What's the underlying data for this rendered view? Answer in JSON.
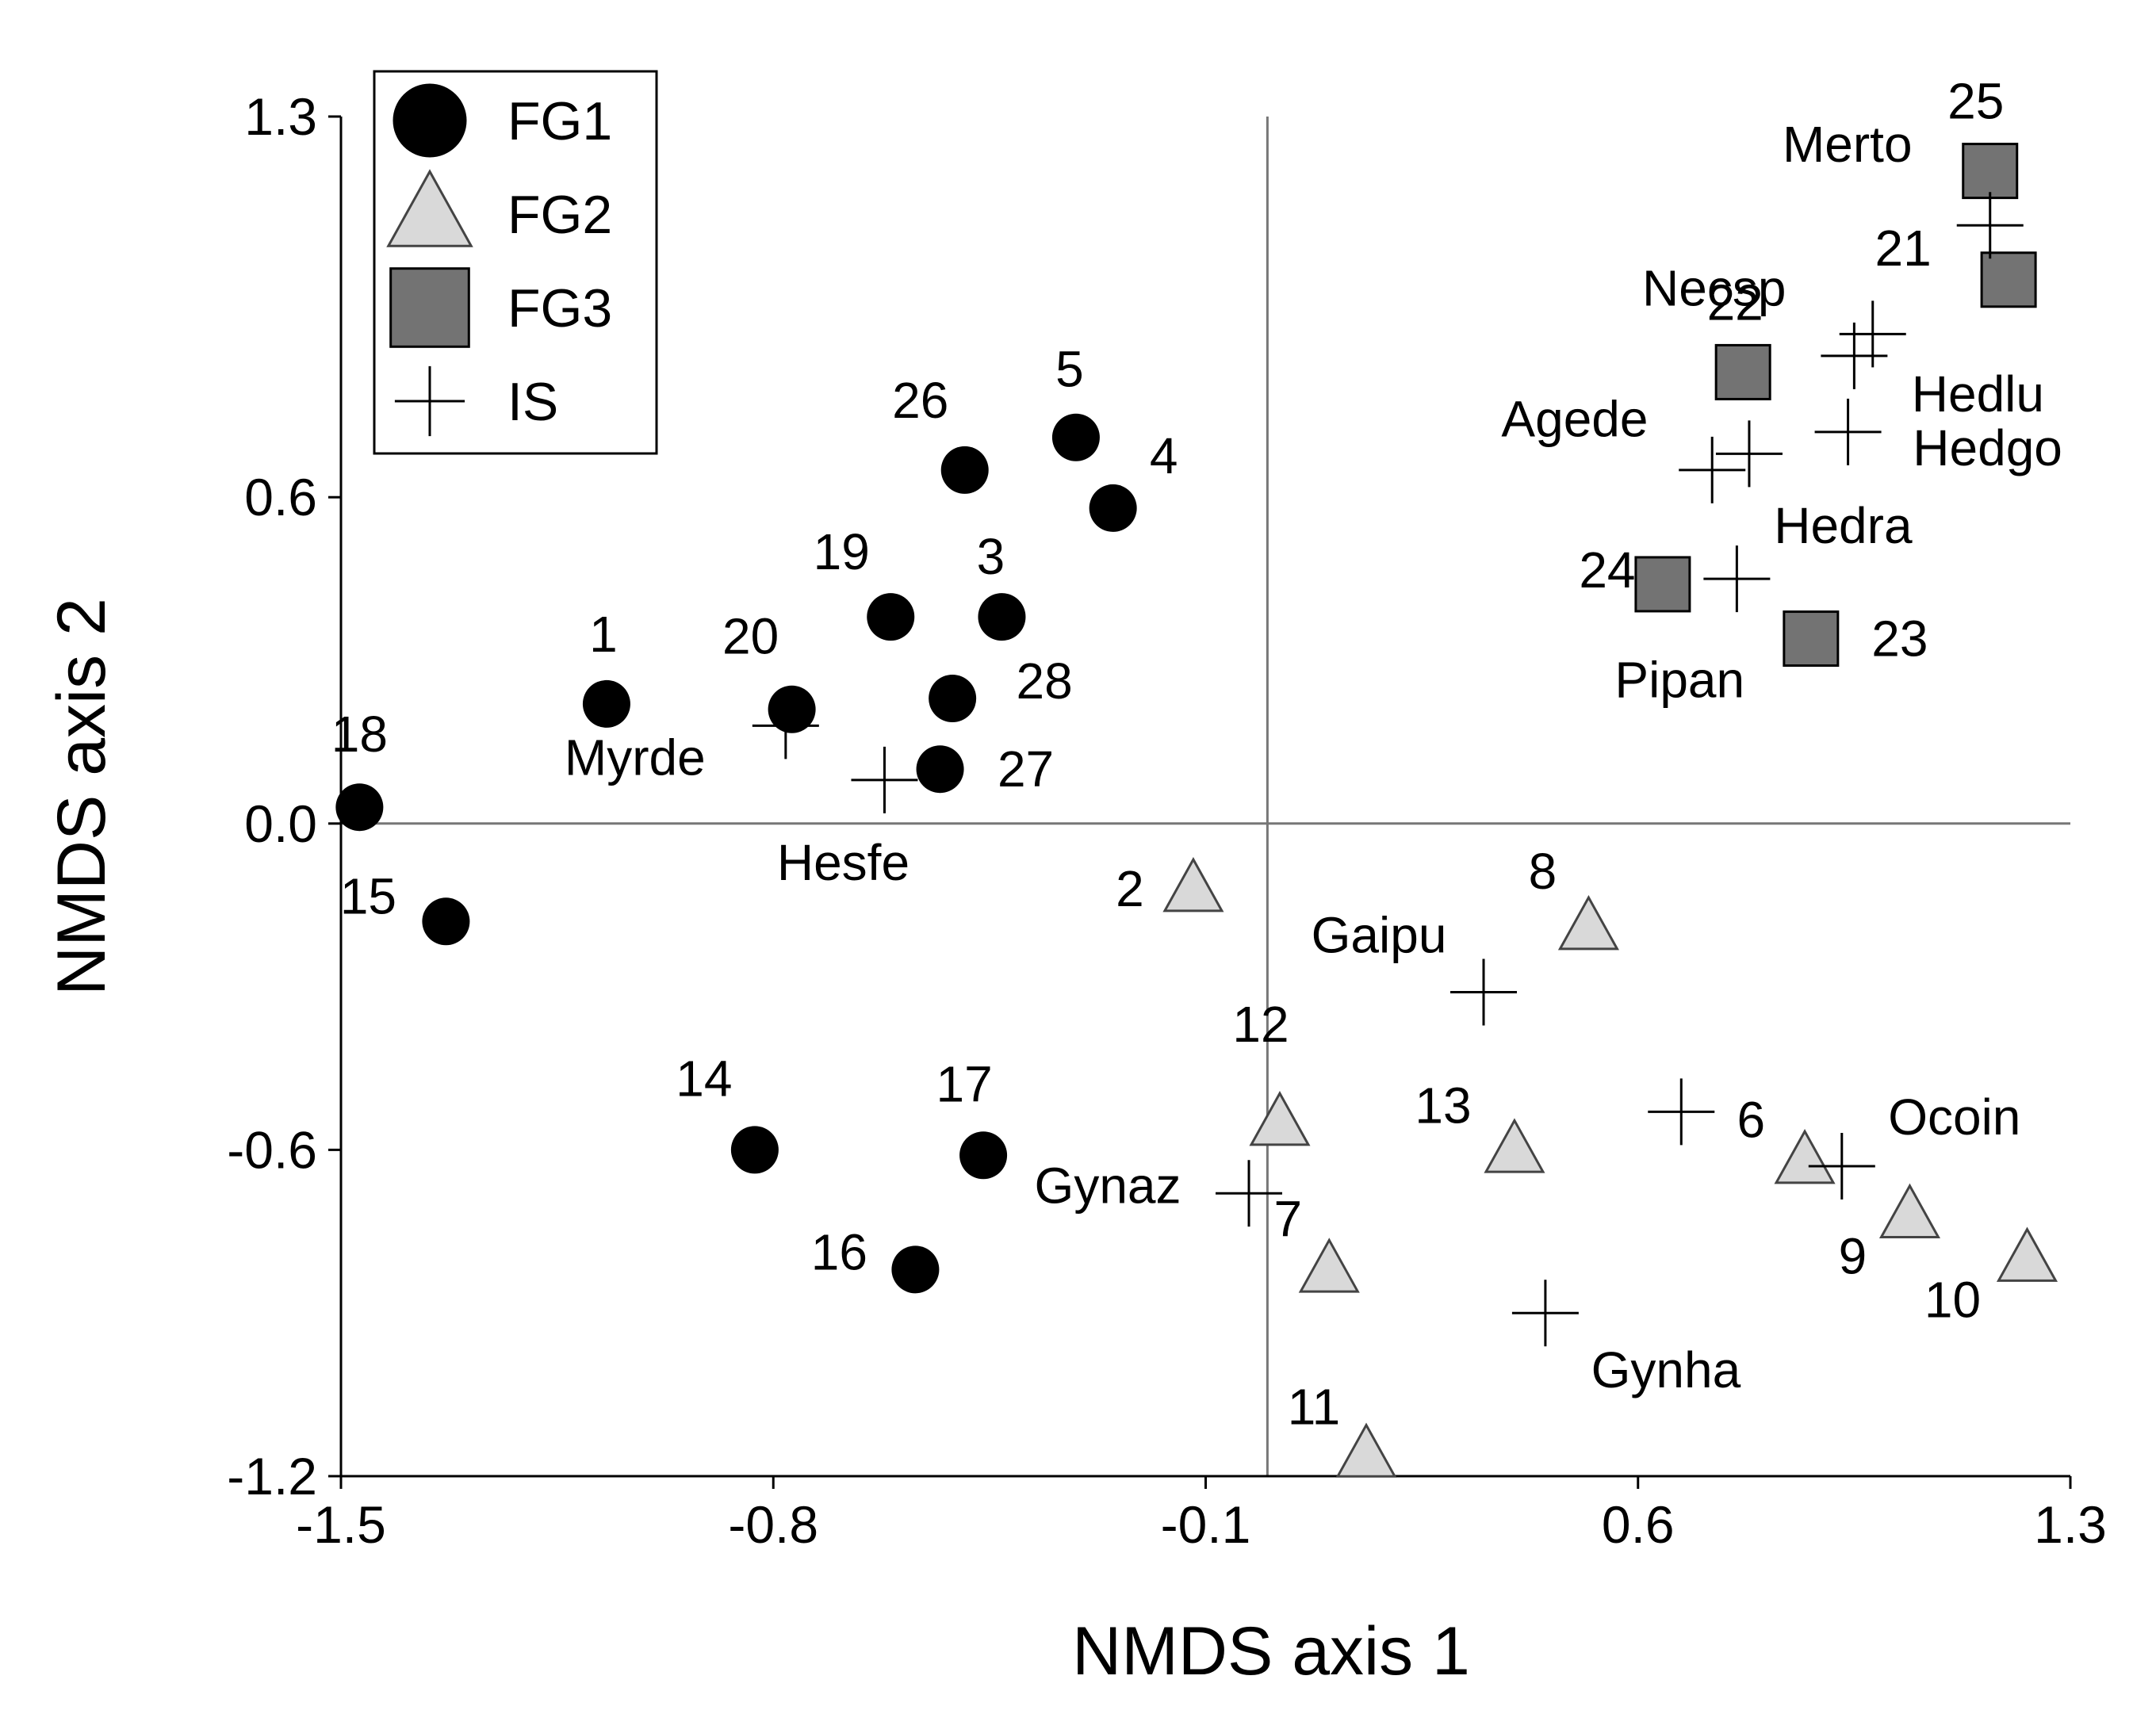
{
  "chart_data": {
    "type": "scatter",
    "title": "",
    "xlabel": "NMDS axis 1",
    "ylabel": "NMDS axis 2",
    "xlim": [
      -1.5,
      1.3
    ],
    "ylim": [
      -1.2,
      1.3
    ],
    "xticks": [
      -1.5,
      -0.8,
      -0.1,
      0.6,
      1.3
    ],
    "xtick_labels": [
      "-1.5",
      "-0.8",
      "-0.1",
      "0.6",
      "1.3"
    ],
    "yticks": [
      -1.2,
      -0.6,
      0.0,
      0.6,
      1.3
    ],
    "ytick_labels": [
      "-1.2",
      "-0.6",
      "0.0",
      "0.6",
      "1.3"
    ],
    "reference_lines": {
      "x": 0.0,
      "y": 0.0
    },
    "legend_position": "top-left",
    "colors": {
      "FG1": "#000000",
      "FG2": "#d9d9d9",
      "FG3": "#737373",
      "IS": "#000000"
    },
    "series": [
      {
        "name": "FG1",
        "marker": "circle",
        "points": [
          {
            "label": "1",
            "x": -1.07,
            "y": 0.22
          },
          {
            "label": "3",
            "x": -0.43,
            "y": 0.38
          },
          {
            "label": "4",
            "x": -0.25,
            "y": 0.58
          },
          {
            "label": "5",
            "x": -0.31,
            "y": 0.71
          },
          {
            "label": "14",
            "x": -0.83,
            "y": -0.6
          },
          {
            "label": "15",
            "x": -1.33,
            "y": -0.18
          },
          {
            "label": "16",
            "x": -0.57,
            "y": -0.82
          },
          {
            "label": "17",
            "x": -0.46,
            "y": -0.61
          },
          {
            "label": "18",
            "x": -1.47,
            "y": 0.03
          },
          {
            "label": "19",
            "x": -0.61,
            "y": 0.38
          },
          {
            "label": "20",
            "x": -0.77,
            "y": 0.21
          },
          {
            "label": "26",
            "x": -0.49,
            "y": 0.65
          },
          {
            "label": "27",
            "x": -0.53,
            "y": 0.1
          },
          {
            "label": "28",
            "x": -0.51,
            "y": 0.23
          }
        ]
      },
      {
        "name": "FG2",
        "marker": "triangle",
        "points": [
          {
            "label": "2",
            "x": -0.12,
            "y": -0.12
          },
          {
            "label": "7",
            "x": 0.1,
            "y": -0.82
          },
          {
            "label": "8",
            "x": 0.52,
            "y": -0.19
          },
          {
            "label": "9",
            "x": 1.04,
            "y": -0.72
          },
          {
            "label": "10",
            "x": 1.23,
            "y": -0.8
          },
          {
            "label": "11",
            "x": 0.16,
            "y": -1.16
          },
          {
            "label": "12",
            "x": 0.02,
            "y": -0.55
          },
          {
            "label": "13",
            "x": 0.4,
            "y": -0.6
          },
          {
            "label": "",
            "x": 0.87,
            "y": -0.62
          }
        ]
      },
      {
        "name": "FG3",
        "marker": "square",
        "points": [
          {
            "label": "21",
            "x": 1.2,
            "y": 1.0
          },
          {
            "label": "22",
            "x": 0.77,
            "y": 0.83
          },
          {
            "label": "23",
            "x": 0.88,
            "y": 0.34
          },
          {
            "label": "24",
            "x": 0.64,
            "y": 0.44
          },
          {
            "label": "25",
            "x": 1.17,
            "y": 1.2
          }
        ]
      },
      {
        "name": "IS",
        "marker": "plus",
        "points": [
          {
            "label": "Merto",
            "x": 1.17,
            "y": 1.1
          },
          {
            "label": "Necsp",
            "x": 0.98,
            "y": 0.9
          },
          {
            "label": "Hedlu",
            "x": 0.95,
            "y": 0.86
          },
          {
            "label": "Agede",
            "x": 0.78,
            "y": 0.68
          },
          {
            "label": "Hedgo",
            "x": 0.94,
            "y": 0.72
          },
          {
            "label": "",
            "x": 0.72,
            "y": 0.65
          },
          {
            "label": "Hedra",
            "x": 0.76,
            "y": 0.45
          },
          {
            "label": "Myrde",
            "x": -0.78,
            "y": 0.18
          },
          {
            "label": "Hesfe",
            "x": -0.62,
            "y": 0.08
          },
          {
            "label": "Gaipu",
            "x": 0.35,
            "y": -0.31
          },
          {
            "label": "6",
            "x": 0.67,
            "y": -0.53
          },
          {
            "label": "Ocoin",
            "x": 0.93,
            "y": -0.63
          },
          {
            "label": "Gynaz",
            "x": -0.03,
            "y": -0.68
          },
          {
            "label": "Gynha",
            "x": 0.45,
            "y": -0.9
          }
        ]
      }
    ]
  }
}
